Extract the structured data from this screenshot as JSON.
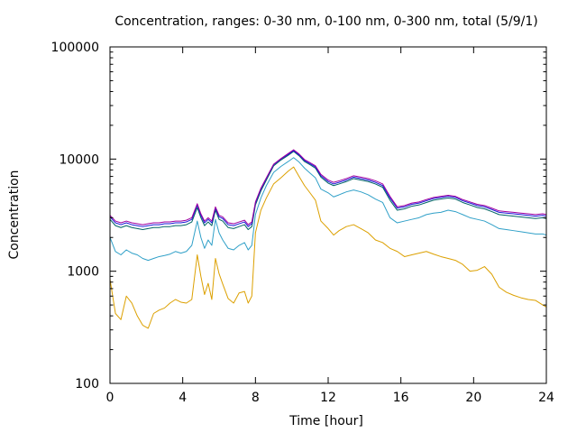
{
  "chart_data": {
    "type": "line",
    "title": "Concentration, ranges: 0-30 nm, 0-100 nm, 0-300 nm, total (5/9/1)",
    "xlabel": "Time [hour]",
    "ylabel": "Concentration",
    "xlim": [
      0,
      24
    ],
    "ylim": [
      100,
      100000
    ],
    "yscale": "log",
    "xticks": [
      0,
      4,
      8,
      12,
      16,
      20,
      24
    ],
    "yticks": [
      100,
      1000,
      10000,
      100000
    ],
    "ytick_labels": [
      "100",
      "1000",
      "10000",
      "100000"
    ],
    "grid": false,
    "series": [
      {
        "color": "#dca000",
        "x": [
          0,
          0.3,
          0.6,
          0.9,
          1.2,
          1.5,
          1.8,
          2.1,
          2.4,
          2.7,
          3.0,
          3.3,
          3.6,
          3.9,
          4.2,
          4.5,
          4.8,
          5.0,
          5.2,
          5.4,
          5.6,
          5.8,
          6.0,
          6.2,
          6.5,
          6.8,
          7.1,
          7.4,
          7.6,
          7.8,
          8.0,
          8.3,
          8.6,
          9.0,
          9.4,
          9.8,
          10.1,
          10.4,
          10.7,
          11.0,
          11.3,
          11.6,
          12.0,
          12.3,
          12.6,
          13.0,
          13.4,
          13.8,
          14.2,
          14.6,
          15.0,
          15.4,
          15.8,
          16.2,
          16.6,
          17.0,
          17.4,
          17.8,
          18.2,
          18.6,
          19.0,
          19.4,
          19.8,
          20.2,
          20.6,
          21.0,
          21.4,
          21.8,
          22.2,
          22.6,
          23.0,
          23.4,
          23.8,
          24.0
        ],
        "y": [
          850,
          420,
          370,
          600,
          520,
          400,
          330,
          310,
          420,
          450,
          470,
          520,
          560,
          530,
          520,
          560,
          1400,
          900,
          620,
          780,
          560,
          1300,
          950,
          770,
          570,
          520,
          640,
          660,
          520,
          600,
          2200,
          3500,
          4500,
          6000,
          6800,
          7800,
          8500,
          7000,
          5800,
          5000,
          4300,
          2800,
          2400,
          2100,
          2300,
          2500,
          2600,
          2400,
          2200,
          1900,
          1800,
          1600,
          1500,
          1350,
          1400,
          1450,
          1500,
          1420,
          1350,
          1300,
          1250,
          1150,
          1000,
          1020,
          1100,
          940,
          720,
          650,
          610,
          580,
          560,
          550,
          500,
          480
        ]
      },
      {
        "color": "#30a0c8",
        "x": [
          0,
          0.3,
          0.6,
          0.9,
          1.2,
          1.5,
          1.8,
          2.1,
          2.4,
          2.7,
          3.0,
          3.3,
          3.6,
          3.9,
          4.2,
          4.5,
          4.8,
          5.0,
          5.2,
          5.4,
          5.6,
          5.8,
          6.0,
          6.2,
          6.5,
          6.8,
          7.1,
          7.4,
          7.6,
          7.8,
          8.0,
          8.3,
          8.6,
          9.0,
          9.4,
          9.8,
          10.1,
          10.4,
          10.7,
          11.0,
          11.3,
          11.6,
          12.0,
          12.3,
          12.6,
          13.0,
          13.4,
          13.8,
          14.2,
          14.6,
          15.0,
          15.4,
          15.8,
          16.2,
          16.6,
          17.0,
          17.4,
          17.8,
          18.2,
          18.6,
          19.0,
          19.4,
          19.8,
          20.2,
          20.6,
          21.0,
          21.4,
          21.8,
          22.2,
          22.6,
          23.0,
          23.4,
          23.8,
          24.0
        ],
        "y": [
          2000,
          1500,
          1400,
          1550,
          1450,
          1400,
          1300,
          1250,
          1300,
          1350,
          1380,
          1420,
          1500,
          1450,
          1500,
          1700,
          2800,
          2000,
          1600,
          1900,
          1700,
          2900,
          2200,
          1900,
          1600,
          1550,
          1700,
          1800,
          1550,
          1700,
          3200,
          4500,
          5800,
          7600,
          8600,
          9500,
          10300,
          9400,
          8300,
          7500,
          6800,
          5400,
          5000,
          4600,
          4800,
          5100,
          5300,
          5100,
          4800,
          4400,
          4100,
          3000,
          2700,
          2800,
          2900,
          3000,
          3200,
          3300,
          3350,
          3500,
          3400,
          3200,
          3000,
          2900,
          2800,
          2600,
          2400,
          2350,
          2300,
          2250,
          2200,
          2150,
          2150,
          2100
        ]
      },
      {
        "color": "#006464",
        "x": [
          0,
          0.3,
          0.6,
          0.9,
          1.2,
          1.5,
          1.8,
          2.1,
          2.4,
          2.7,
          3.0,
          3.3,
          3.6,
          3.9,
          4.2,
          4.5,
          4.8,
          5.0,
          5.2,
          5.4,
          5.6,
          5.8,
          6.0,
          6.2,
          6.5,
          6.8,
          7.1,
          7.4,
          7.6,
          7.8,
          8.0,
          8.3,
          8.6,
          9.0,
          9.4,
          9.8,
          10.1,
          10.4,
          10.7,
          11.0,
          11.3,
          11.6,
          12.0,
          12.3,
          12.6,
          13.0,
          13.4,
          13.8,
          14.2,
          14.6,
          15.0,
          15.4,
          15.8,
          16.2,
          16.6,
          17.0,
          17.4,
          17.8,
          18.2,
          18.6,
          19.0,
          19.4,
          19.8,
          20.2,
          20.6,
          21.0,
          21.4,
          21.8,
          22.2,
          22.6,
          23.0,
          23.4,
          23.8,
          24.0
        ],
        "y": [
          2900,
          2550,
          2450,
          2550,
          2450,
          2400,
          2350,
          2400,
          2450,
          2450,
          2500,
          2500,
          2550,
          2550,
          2600,
          2750,
          3700,
          3000,
          2550,
          2750,
          2550,
          3500,
          2900,
          2800,
          2450,
          2400,
          2500,
          2600,
          2350,
          2500,
          3900,
          5200,
          6500,
          8700,
          9800,
          10800,
          11700,
          10700,
          9500,
          8900,
          8300,
          6900,
          6100,
          5800,
          6000,
          6300,
          6700,
          6500,
          6300,
          6000,
          5600,
          4300,
          3500,
          3600,
          3800,
          3900,
          4100,
          4300,
          4400,
          4500,
          4400,
          4100,
          3900,
          3700,
          3600,
          3400,
          3200,
          3150,
          3100,
          3050,
          3000,
          2950,
          3000,
          2950
        ]
      },
      {
        "color": "#1a1ad8",
        "x": [
          0,
          0.3,
          0.6,
          0.9,
          1.2,
          1.5,
          1.8,
          2.1,
          2.4,
          2.7,
          3.0,
          3.3,
          3.6,
          3.9,
          4.2,
          4.5,
          4.8,
          5.0,
          5.2,
          5.4,
          5.6,
          5.8,
          6.0,
          6.2,
          6.5,
          6.8,
          7.1,
          7.4,
          7.6,
          7.8,
          8.0,
          8.3,
          8.6,
          9.0,
          9.4,
          9.8,
          10.1,
          10.4,
          10.7,
          11.0,
          11.3,
          11.6,
          12.0,
          12.3,
          12.6,
          13.0,
          13.4,
          13.8,
          14.2,
          14.6,
          15.0,
          15.4,
          15.8,
          16.2,
          16.6,
          17.0,
          17.4,
          17.8,
          18.2,
          18.6,
          19.0,
          19.4,
          19.8,
          20.2,
          20.6,
          21.0,
          21.4,
          21.8,
          22.2,
          22.6,
          23.0,
          23.4,
          23.8,
          24.0
        ],
        "y": [
          3050,
          2700,
          2600,
          2700,
          2600,
          2550,
          2500,
          2550,
          2600,
          2600,
          2650,
          2650,
          2700,
          2700,
          2750,
          2900,
          3900,
          3150,
          2700,
          2900,
          2700,
          3650,
          3050,
          2950,
          2600,
          2550,
          2650,
          2750,
          2500,
          2650,
          4050,
          5400,
          6700,
          8900,
          10000,
          11000,
          11900,
          10900,
          9700,
          9100,
          8500,
          7100,
          6300,
          6000,
          6200,
          6500,
          6900,
          6700,
          6500,
          6200,
          5800,
          4500,
          3650,
          3750,
          3950,
          4050,
          4250,
          4450,
          4550,
          4650,
          4550,
          4250,
          4050,
          3850,
          3750,
          3550,
          3350,
          3300,
          3250,
          3200,
          3150,
          3100,
          3150,
          3100
        ]
      },
      {
        "color": "#a000a0",
        "x": [
          0,
          0.3,
          0.6,
          0.9,
          1.2,
          1.5,
          1.8,
          2.1,
          2.4,
          2.7,
          3.0,
          3.3,
          3.6,
          3.9,
          4.2,
          4.5,
          4.8,
          5.0,
          5.2,
          5.4,
          5.6,
          5.8,
          6.0,
          6.2,
          6.5,
          6.8,
          7.1,
          7.4,
          7.6,
          7.8,
          8.0,
          8.3,
          8.6,
          9.0,
          9.4,
          9.8,
          10.1,
          10.4,
          10.7,
          11.0,
          11.3,
          11.6,
          12.0,
          12.3,
          12.6,
          13.0,
          13.4,
          13.8,
          14.2,
          14.6,
          15.0,
          15.4,
          15.8,
          16.2,
          16.6,
          17.0,
          17.4,
          17.8,
          18.2,
          18.6,
          19.0,
          19.4,
          19.8,
          20.2,
          20.6,
          21.0,
          21.4,
          21.8,
          22.2,
          22.6,
          23.0,
          23.4,
          23.8,
          24.0
        ],
        "y": [
          3150,
          2800,
          2700,
          2800,
          2700,
          2650,
          2600,
          2650,
          2700,
          2700,
          2750,
          2750,
          2800,
          2800,
          2850,
          3000,
          4000,
          3250,
          2800,
          3000,
          2800,
          3750,
          3150,
          3050,
          2700,
          2650,
          2750,
          2850,
          2600,
          2750,
          4150,
          5500,
          6800,
          9000,
          10100,
          11200,
          12100,
          11100,
          9900,
          9300,
          8700,
          7300,
          6500,
          6200,
          6400,
          6700,
          7100,
          6900,
          6700,
          6400,
          6000,
          4650,
          3750,
          3850,
          4050,
          4150,
          4350,
          4550,
          4650,
          4750,
          4650,
          4350,
          4150,
          3950,
          3850,
          3650,
          3450,
          3400,
          3350,
          3300,
          3250,
          3200,
          3250,
          3200
        ]
      }
    ]
  }
}
